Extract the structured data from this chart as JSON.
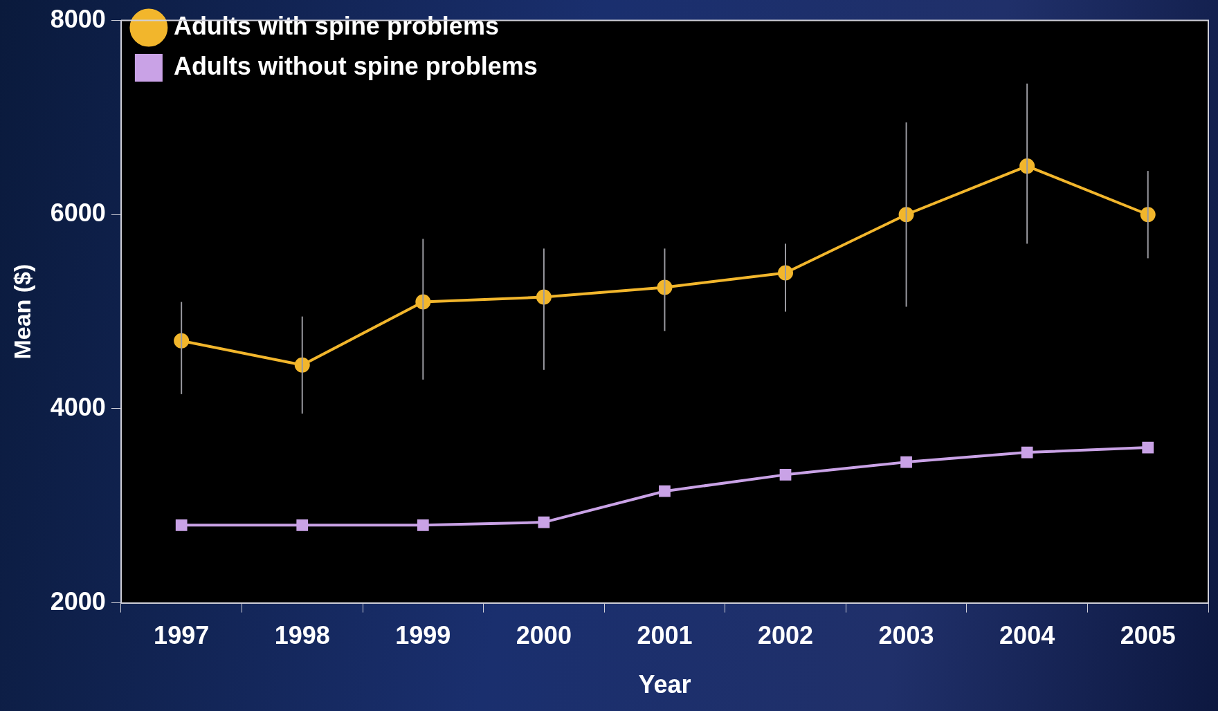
{
  "chart_data": {
    "type": "line",
    "xlabel": "Year",
    "ylabel": "Mean ($)",
    "categories": [
      "1997",
      "1998",
      "1999",
      "2000",
      "2001",
      "2002",
      "2003",
      "2004",
      "2005"
    ],
    "series": [
      {
        "name": "Adults with spine problems",
        "color": "#f2b62c",
        "marker": "circle",
        "values": [
          4700,
          4450,
          5100,
          5150,
          5250,
          5400,
          6000,
          6500,
          6000
        ],
        "errors": [
          [
            4150,
            5100
          ],
          [
            3950,
            4950
          ],
          [
            4300,
            5750
          ],
          [
            4400,
            5650
          ],
          [
            4800,
            5650
          ],
          [
            5000,
            5700
          ],
          [
            5050,
            6950
          ],
          [
            5700,
            7350
          ],
          [
            5550,
            6450
          ]
        ]
      },
      {
        "name": "Adults without spine problems",
        "color": "#c9a2e6",
        "marker": "square",
        "values": [
          2800,
          2800,
          2800,
          2830,
          3150,
          3320,
          3450,
          3550,
          3600
        ]
      }
    ],
    "ylim": [
      2000,
      8000
    ],
    "yticks": [
      2000,
      4000,
      6000,
      8000
    ],
    "grid": false,
    "legend": "top left"
  }
}
